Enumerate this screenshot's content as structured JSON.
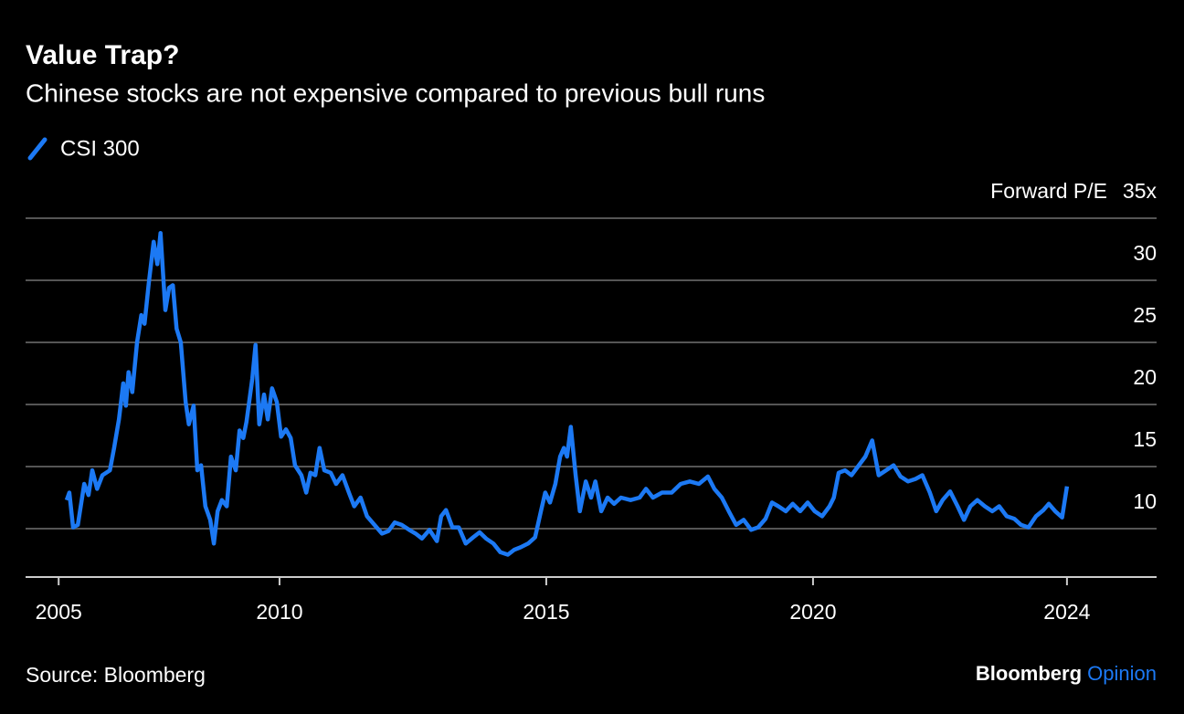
{
  "chart_data": {
    "type": "line",
    "title": "Value Trap?",
    "subtitle": "Chinese stocks are not expensive compared to previous bull runs",
    "y_label": "Forward P/E",
    "source": "Source: Bloomberg",
    "brand": [
      "Bloomberg",
      "Opinion"
    ],
    "x": [
      2006.01,
      2006.06,
      2006.13,
      2006.22,
      2006.34,
      2006.42,
      2006.49,
      2006.58,
      2006.68,
      2006.82,
      2006.9,
      2006.99,
      2007.07,
      2007.12,
      2007.17,
      2007.24,
      2007.33,
      2007.41,
      2007.47,
      2007.55,
      2007.64,
      2007.71,
      2007.77,
      2007.86,
      2007.93,
      2008.0,
      2008.07,
      2008.15,
      2008.24,
      2008.3,
      2008.39,
      2008.46,
      2008.53,
      2008.61,
      2008.7,
      2008.77,
      2008.84,
      2008.92,
      2009.01,
      2009.09,
      2009.18,
      2009.25,
      2009.32,
      2009.38,
      2009.49,
      2009.55,
      2009.62,
      2009.71,
      2009.78,
      2009.86,
      2009.95,
      2010.03,
      2010.12,
      2010.21,
      2010.29,
      2010.41,
      2010.5,
      2010.58,
      2010.67,
      2010.75,
      2010.84,
      2010.96,
      2011.06,
      2011.18,
      2011.3,
      2011.4,
      2011.52,
      2011.64,
      2011.78,
      2011.92,
      2012.04,
      2012.16,
      2012.29,
      2012.43,
      2012.55,
      2012.67,
      2012.81,
      2012.95,
      2013.03,
      2013.12,
      2013.24,
      2013.36,
      2013.49,
      2013.63,
      2013.75,
      2013.87,
      2014.01,
      2014.14,
      2014.28,
      2014.4,
      2014.52,
      2014.66,
      2014.79,
      2014.9,
      2014.98,
      2015.07,
      2015.17,
      2015.26,
      2015.33,
      2015.39,
      2015.46,
      2015.55,
      2015.63,
      2015.74,
      2015.84,
      2015.92,
      2016.03,
      2016.15,
      2016.27,
      2016.4,
      2016.58,
      2016.75,
      2016.87,
      2017.0,
      2017.17,
      2017.35,
      2017.52,
      2017.69,
      2017.86,
      2018.03,
      2018.15,
      2018.29,
      2018.42,
      2018.56,
      2018.7,
      2018.84,
      2018.97,
      2019.11,
      2019.23,
      2019.35,
      2019.49,
      2019.62,
      2019.76,
      2019.9,
      2020.03,
      2020.17,
      2020.31,
      2020.39,
      2020.48,
      2020.6,
      2020.72,
      2020.86,
      2020.98,
      2021.11,
      2021.23,
      2021.37,
      2021.51,
      2021.64,
      2021.78,
      2021.92,
      2022.05,
      2022.19,
      2022.31,
      2022.43,
      2022.57,
      2022.71,
      2022.83,
      2022.95,
      2023.08,
      2023.22,
      2023.36,
      2023.49,
      2023.63,
      2023.77,
      2023.9,
      2024.04,
      2024.18,
      2024.32,
      2024.42,
      2024.54,
      2024.67,
      2024.76
    ],
    "series": [
      {
        "name": "CSI 300",
        "color": "#1c79f4",
        "values": [
          12.3,
          12.9,
          10.1,
          10.3,
          13.6,
          12.7,
          14.7,
          13.2,
          14.3,
          14.7,
          16.5,
          18.8,
          21.7,
          19.9,
          22.6,
          21.0,
          25.0,
          27.2,
          26.5,
          29.8,
          33.1,
          31.3,
          33.8,
          27.6,
          29.4,
          29.6,
          26.1,
          25.0,
          20.2,
          18.4,
          19.9,
          14.7,
          15.1,
          11.8,
          10.7,
          8.8,
          11.4,
          12.3,
          11.8,
          15.8,
          14.7,
          17.9,
          17.3,
          18.6,
          22.1,
          24.8,
          18.4,
          20.8,
          18.8,
          21.3,
          20.2,
          17.4,
          18.0,
          17.3,
          15.1,
          14.3,
          12.9,
          14.5,
          14.3,
          16.5,
          14.7,
          14.5,
          13.6,
          14.3,
          12.9,
          11.8,
          12.5,
          11.0,
          10.3,
          9.6,
          9.8,
          10.5,
          10.3,
          9.9,
          9.6,
          9.2,
          9.9,
          9.0,
          11.0,
          11.5,
          10.1,
          10.1,
          8.8,
          9.3,
          9.7,
          9.2,
          8.8,
          8.1,
          7.9,
          8.3,
          8.5,
          8.8,
          9.3,
          11.4,
          12.9,
          12.1,
          13.6,
          15.8,
          16.5,
          15.8,
          18.2,
          14.3,
          11.4,
          13.8,
          12.5,
          13.8,
          11.4,
          12.5,
          12.0,
          12.5,
          12.3,
          12.5,
          13.2,
          12.5,
          12.9,
          12.9,
          13.6,
          13.8,
          13.6,
          14.2,
          13.2,
          12.5,
          11.4,
          10.3,
          10.7,
          9.9,
          10.1,
          10.8,
          12.1,
          11.8,
          11.4,
          12.0,
          11.4,
          12.1,
          11.4,
          11.0,
          11.8,
          12.5,
          14.5,
          14.7,
          14.3,
          15.1,
          15.8,
          17.1,
          14.3,
          14.7,
          15.1,
          14.2,
          13.8,
          14.0,
          14.3,
          12.9,
          11.4,
          12.3,
          13.0,
          11.8,
          10.7,
          11.8,
          12.3,
          11.8,
          11.4,
          11.8,
          11.0,
          10.8,
          10.3,
          10.1,
          11.0,
          11.5,
          12.0,
          11.4,
          10.9,
          13.4
        ]
      }
    ],
    "xlim": [
      2005.24,
      2026.44
    ],
    "xticks": [
      {
        "value": 2005.86,
        "label": "2005"
      },
      2010,
      2015,
      2020,
      {
        "value": 2024.76,
        "label": "2024"
      }
    ],
    "ylim": [
      6.1,
      35
    ],
    "yticks": [
      10,
      15,
      20,
      25,
      30,
      {
        "value": 35,
        "label": "35x"
      }
    ],
    "grid": true
  }
}
